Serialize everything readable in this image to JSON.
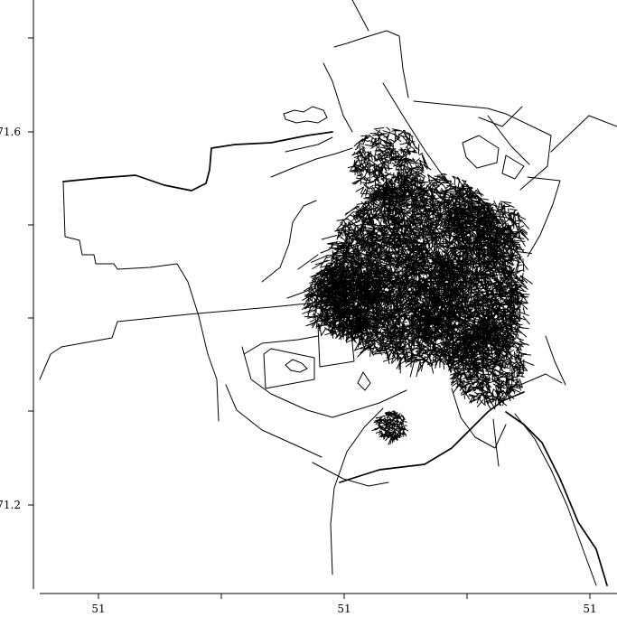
{
  "map": {
    "y_ticks": [
      {
        "label": "71.6"
      },
      {
        "label": ""
      },
      {
        "label": ""
      },
      {
        "label": ""
      },
      {
        "label": "71.2"
      }
    ],
    "x_ticks": [
      {
        "label": "51"
      },
      {
        "label": ""
      },
      {
        "label": "51"
      },
      {
        "label": ""
      },
      {
        "label": "51"
      }
    ]
  }
}
